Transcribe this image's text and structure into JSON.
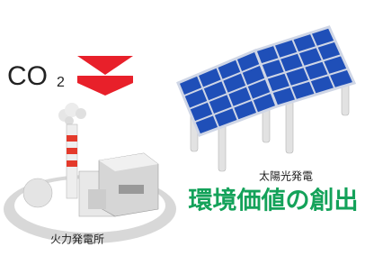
{
  "co2": {
    "main": "CO",
    "sub": "2"
  },
  "factory_label": "火力発電所",
  "solar_label": "太陽光発電",
  "headline": "環境価値の創出"
}
